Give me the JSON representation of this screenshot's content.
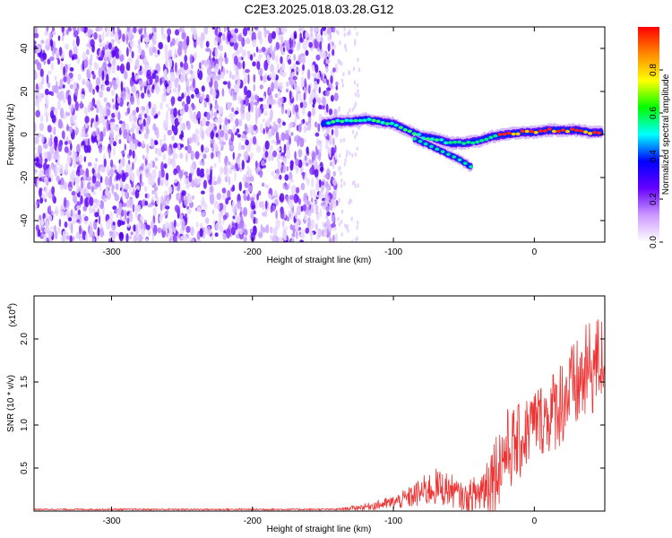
{
  "chart_data": [
    {
      "type": "heatmap",
      "title": "C2E3.2025.018.03.28.G12",
      "xlabel": "Height of straight line (km)",
      "ylabel": "Frequency (Hz)",
      "xlim": [
        -355,
        50
      ],
      "ylim": [
        -50,
        50
      ],
      "xticks": [
        -300,
        -200,
        -100,
        0
      ],
      "yticks": [
        -40,
        -20,
        0,
        20,
        40
      ],
      "noise_region": {
        "x_from": -355,
        "x_to": -140
      },
      "signal_trace": {
        "x": [
          -150,
          -140,
          -130,
          -120,
          -110,
          -100,
          -90,
          -80,
          -70,
          -60,
          -50,
          -40,
          -30,
          -20,
          -10,
          0,
          10,
          20,
          30,
          40,
          48
        ],
        "y": [
          5,
          6,
          6,
          7,
          6,
          5,
          2,
          -1,
          -2,
          -4,
          -4,
          -3,
          -1,
          0,
          1,
          1,
          2,
          2,
          2,
          1,
          1
        ]
      },
      "secondary_branch": {
        "x": [
          -85,
          -75,
          -65,
          -55,
          -45
        ],
        "y": [
          -2,
          -5,
          -8,
          -11,
          -15
        ]
      },
      "colorbar": {
        "label": "Normalized spectral amplitude",
        "range": [
          0,
          1
        ],
        "ticks": [
          0.0,
          0.2,
          0.4,
          0.6,
          0.8
        ],
        "tick_labels": [
          "0.0",
          "0.2",
          "0.4",
          "0.6",
          "0.8"
        ],
        "colors": [
          "#ffffff",
          "#cc99ff",
          "#6600ff",
          "#0000ff",
          "#00ffff",
          "#00ff00",
          "#ffff00",
          "#ff8800",
          "#ff0000"
        ]
      }
    },
    {
      "type": "line",
      "title": "",
      "xlabel": "Height of straight line (km)",
      "ylabel": "SNR (10 * v/v)",
      "multiplier_label": "(x10",
      "multiplier_exponent": "4",
      "multiplier_close": ")",
      "xlim": [
        -355,
        50
      ],
      "ylim": [
        0,
        2.5
      ],
      "xticks": [
        -300,
        -200,
        -100,
        0
      ],
      "yticks": [
        0.5,
        1.0,
        1.5,
        2.0
      ],
      "ytick_labels": [
        "0.5",
        "1.0",
        "1.5",
        "2.0"
      ],
      "line_color": "#ee3333",
      "envelope": {
        "x": [
          -355,
          -140,
          -120,
          -100,
          -90,
          -80,
          -70,
          -60,
          -50,
          -40,
          -30,
          -20,
          -10,
          0,
          10,
          20,
          30,
          40,
          50
        ],
        "mean": [
          0.02,
          0.02,
          0.05,
          0.1,
          0.15,
          0.22,
          0.28,
          0.25,
          0.15,
          0.2,
          0.4,
          0.7,
          0.8,
          1.05,
          1.1,
          1.3,
          1.45,
          1.65,
          1.8
        ],
        "amplitude": [
          0.008,
          0.01,
          0.04,
          0.08,
          0.12,
          0.18,
          0.22,
          0.2,
          0.15,
          0.25,
          0.45,
          0.5,
          0.45,
          0.4,
          0.45,
          0.55,
          0.55,
          0.6,
          0.5
        ]
      }
    }
  ]
}
